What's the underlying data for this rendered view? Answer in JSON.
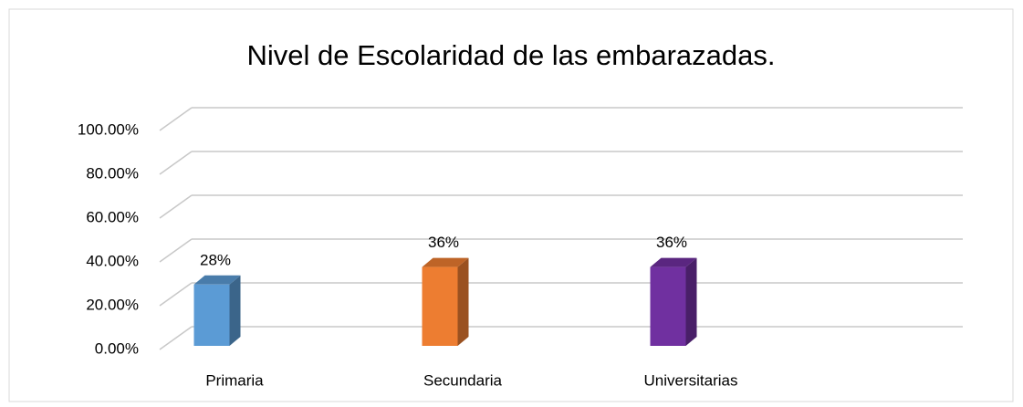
{
  "chart_data": {
    "type": "bar3d",
    "title": "Nivel de Escolaridad de las embarazadas.",
    "categories": [
      "Primaria",
      "Secundaria",
      "Universitarias"
    ],
    "values": [
      28,
      36,
      36
    ],
    "value_labels": [
      "28%",
      "36%",
      "36%"
    ],
    "colors": [
      "#5b9bd5",
      "#ed7d31",
      "#7030a0"
    ],
    "ylim": [
      0,
      100
    ],
    "yticks": [
      {
        "value": 0,
        "label": "0.00%"
      },
      {
        "value": 20,
        "label": "20.00%"
      },
      {
        "value": 40,
        "label": "40.00%"
      },
      {
        "value": 60,
        "label": "60.00%"
      },
      {
        "value": 80,
        "label": "80.00%"
      },
      {
        "value": 100,
        "label": "100.00%"
      }
    ],
    "grid": true
  }
}
